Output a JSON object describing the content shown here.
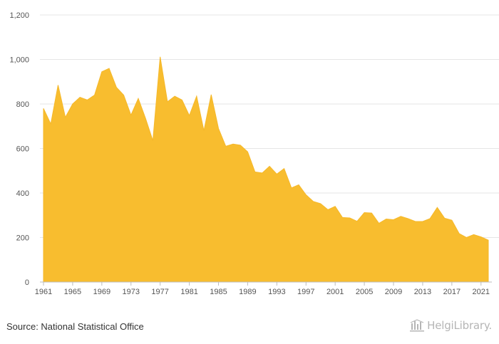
{
  "chart_data": {
    "type": "area",
    "title": "",
    "xlabel": "",
    "ylabel": "",
    "ylim": [
      0,
      1200
    ],
    "yticks": [
      0,
      200,
      400,
      600,
      800,
      1000,
      1200
    ],
    "ytick_labels": [
      "0",
      "200",
      "400",
      "600",
      "800",
      "1,000",
      "1,200"
    ],
    "xlim": [
      1961,
      2022
    ],
    "xticks": [
      1961,
      1965,
      1969,
      1973,
      1977,
      1981,
      1985,
      1989,
      1993,
      1997,
      2001,
      2005,
      2009,
      2013,
      2017,
      2021
    ],
    "xtick_labels": [
      "1961",
      "1965",
      "1969",
      "1973",
      "1977",
      "1981",
      "1985",
      "1989",
      "1993",
      "1997",
      "2001",
      "2005",
      "2009",
      "2013",
      "2017",
      "2021"
    ],
    "grid": true,
    "legend": "none",
    "fill_color": "#F8BD2F",
    "series": [
      {
        "x": [
          1961,
          1962,
          1963,
          1964,
          1965,
          1966,
          1967,
          1968,
          1969,
          1970,
          1971,
          1972,
          1973,
          1974,
          1975,
          1976,
          1977,
          1978,
          1979,
          1980,
          1981,
          1982,
          1983,
          1984,
          1985,
          1986,
          1987,
          1988,
          1989,
          1990,
          1991,
          1992,
          1993,
          1994,
          1995,
          1996,
          1997,
          1998,
          1999,
          2000,
          2001,
          2002,
          2003,
          2004,
          2005,
          2006,
          2007,
          2008,
          2009,
          2010,
          2011,
          2012,
          2013,
          2014,
          2015,
          2016,
          2017,
          2018,
          2019,
          2020,
          2021,
          2022
        ],
        "values": [
          780,
          710,
          885,
          740,
          800,
          830,
          818,
          840,
          945,
          960,
          875,
          840,
          750,
          825,
          735,
          635,
          1012,
          810,
          835,
          818,
          748,
          835,
          680,
          842,
          690,
          610,
          620,
          615,
          585,
          495,
          490,
          520,
          485,
          510,
          423,
          437,
          392,
          362,
          352,
          325,
          340,
          290,
          288,
          273,
          312,
          310,
          264,
          283,
          280,
          295,
          285,
          272,
          272,
          285,
          335,
          287,
          278,
          218,
          200,
          213,
          203,
          188
        ]
      }
    ]
  },
  "footer": {
    "source": "Source: National Statistical Office",
    "brand": "HelgiLibrary."
  }
}
